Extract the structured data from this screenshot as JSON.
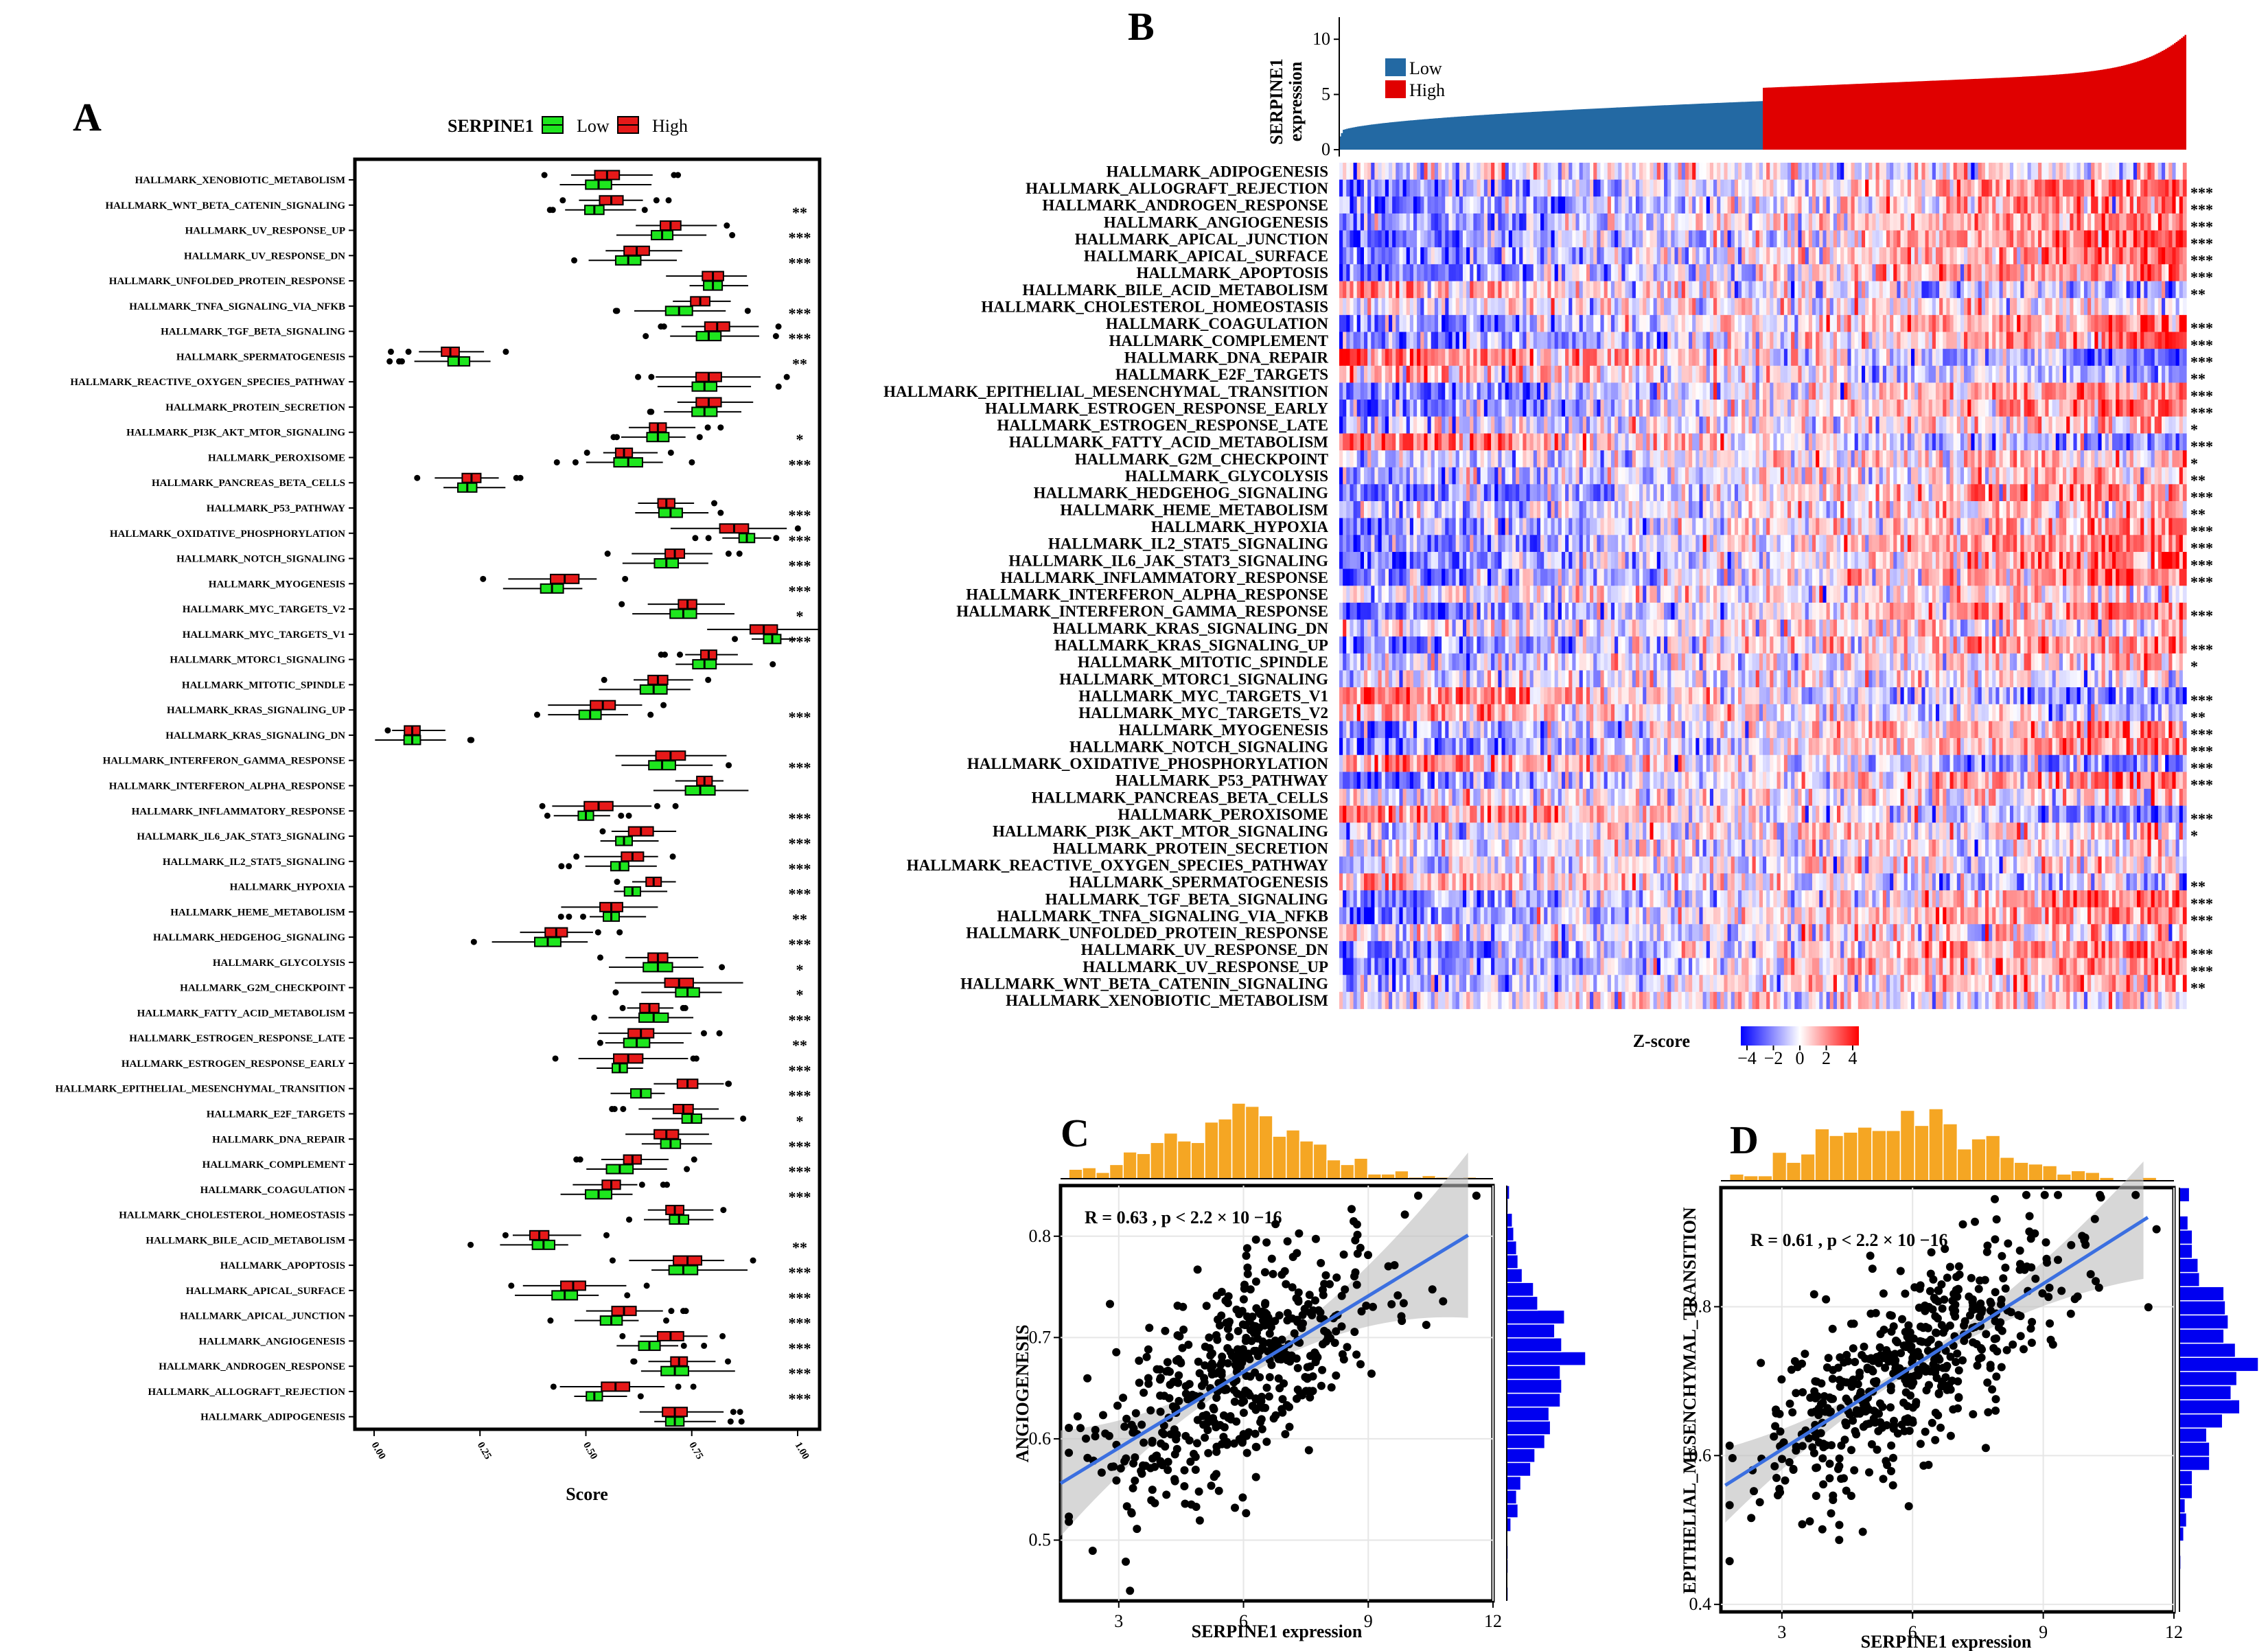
{
  "panels": {
    "A": "A",
    "B": "B",
    "C": "C",
    "D": "D"
  },
  "colors": {
    "low_box": "#1ee61e",
    "high_box": "#e61919",
    "low_bar": "#2369a3",
    "high_bar": "#e00000",
    "hist_top": "#f5a623",
    "hist_side": "#0000f0",
    "fit_line": "#3b6fe0",
    "heat_low": "#0000ff",
    "heat_mid": "#ffffff",
    "heat_high": "#ff0000"
  },
  "panel_a": {
    "legend_title": "SERPINE1",
    "legend_low": "Low",
    "legend_high": "High",
    "xlabel": "Score",
    "xticks": [
      "0.00",
      "0.25",
      "0.50",
      "0.75",
      "1.00"
    ]
  },
  "panel_b": {
    "ylabel_top": "SERPINE1",
    "ylabel_bottom": "expression",
    "yticks": [
      "0",
      "5",
      "10"
    ],
    "legend_low": "Low",
    "legend_high": "High",
    "zscore_title": "Z-score",
    "zscore_ticks": [
      "−4",
      "−2",
      "0",
      "2",
      "4"
    ]
  },
  "panel_c": {
    "annotation": "R = 0.63 , p < 2.2 × 10 −16",
    "xlabel": "SERPINE1 expression",
    "ylabel": "ANGIOGENESIS",
    "xticks": [
      "3",
      "6",
      "9",
      "12"
    ],
    "yticks": [
      "0.5",
      "0.6",
      "0.7",
      "0.8"
    ]
  },
  "panel_d": {
    "annotation": "R = 0.61 , p < 2.2 × 10 −16",
    "xlabel": "SERPINE1 expression",
    "ylabel": "EPITHELIAL_MESENCHYMAL_TRANSITION",
    "xticks": [
      "3",
      "6",
      "9",
      "12"
    ],
    "yticks": [
      "0.4",
      "0.6",
      "0.8"
    ]
  },
  "chart_data": [
    {
      "type": "box",
      "panel": "A",
      "xlabel": "Score",
      "xlim": [
        0,
        1
      ],
      "categories": [
        "HALLMARK_XENOBIOTIC_METABOLISM",
        "HALLMARK_WNT_BETA_CATENIN_SIGNALING",
        "HALLMARK_UV_RESPONSE_UP",
        "HALLMARK_UV_RESPONSE_DN",
        "HALLMARK_UNFOLDED_PROTEIN_RESPONSE",
        "HALLMARK_TNFA_SIGNALING_VIA_NFKB",
        "HALLMARK_TGF_BETA_SIGNALING",
        "HALLMARK_SPERMATOGENESIS",
        "HALLMARK_REACTIVE_OXYGEN_SPECIES_PATHWAY",
        "HALLMARK_PROTEIN_SECRETION",
        "HALLMARK_PI3K_AKT_MTOR_SIGNALING",
        "HALLMARK_PEROXISOME",
        "HALLMARK_PANCREAS_BETA_CELLS",
        "HALLMARK_P53_PATHWAY",
        "HALLMARK_OXIDATIVE_PHOSPHORYLATION",
        "HALLMARK_NOTCH_SIGNALING",
        "HALLMARK_MYOGENESIS",
        "HALLMARK_MYC_TARGETS_V2",
        "HALLMARK_MYC_TARGETS_V1",
        "HALLMARK_MTORC1_SIGNALING",
        "HALLMARK_MITOTIC_SPINDLE",
        "HALLMARK_KRAS_SIGNALING_UP",
        "HALLMARK_KRAS_SIGNALING_DN",
        "HALLMARK_INTERFERON_GAMMA_RESPONSE",
        "HALLMARK_INTERFERON_ALPHA_RESPONSE",
        "HALLMARK_INFLAMMATORY_RESPONSE",
        "HALLMARK_IL6_JAK_STAT3_SIGNALING",
        "HALLMARK_IL2_STAT5_SIGNALING",
        "HALLMARK_HYPOXIA",
        "HALLMARK_HEME_METABOLISM",
        "HALLMARK_HEDGEHOG_SIGNALING",
        "HALLMARK_GLYCOLYSIS",
        "HALLMARK_G2M_CHECKPOINT",
        "HALLMARK_FATTY_ACID_METABOLISM",
        "HALLMARK_ESTROGEN_RESPONSE_LATE",
        "HALLMARK_ESTROGEN_RESPONSE_EARLY",
        "HALLMARK_EPITHELIAL_MESENCHYMAL_TRANSITION",
        "HALLMARK_E2F_TARGETS",
        "HALLMARK_DNA_REPAIR",
        "HALLMARK_COMPLEMENT",
        "HALLMARK_COAGULATION",
        "HALLMARK_CHOLESTEROL_HOMEOSTASIS",
        "HALLMARK_BILE_ACID_METABOLISM",
        "HALLMARK_APOPTOSIS",
        "HALLMARK_APICAL_SURFACE",
        "HALLMARK_APICAL_JUNCTION",
        "HALLMARK_ANGIOGENESIS",
        "HALLMARK_ANDROGEN_RESPONSE",
        "HALLMARK_ALLOGRAFT_REJECTION",
        "HALLMARK_ADIPOGENESIS"
      ],
      "significance": [
        "",
        "**",
        "***",
        "***",
        "",
        "***",
        "***",
        "**",
        "",
        "",
        "*",
        "***",
        "",
        "***",
        "***",
        "***",
        "***",
        "*",
        "***",
        "",
        "",
        "***",
        "",
        "***",
        "",
        "***",
        "***",
        "***",
        "***",
        "**",
        "***",
        "*",
        "*",
        "***",
        "**",
        "***",
        "***",
        "*",
        "***",
        "***",
        "***",
        "",
        "**",
        "***",
        "***",
        "***",
        "***",
        "***",
        "***",
        ""
      ],
      "series": [
        {
          "name": "Low",
          "medians": [
            0.53,
            0.52,
            0.68,
            0.6,
            0.8,
            0.72,
            0.79,
            0.2,
            0.78,
            0.78,
            0.67,
            0.6,
            0.22,
            0.7,
            0.88,
            0.69,
            0.42,
            0.73,
            0.94,
            0.78,
            0.66,
            0.51,
            0.09,
            0.68,
            0.77,
            0.5,
            0.59,
            0.58,
            0.61,
            0.56,
            0.41,
            0.67,
            0.74,
            0.66,
            0.62,
            0.58,
            0.63,
            0.75,
            0.7,
            0.58,
            0.53,
            0.72,
            0.4,
            0.73,
            0.45,
            0.56,
            0.65,
            0.71,
            0.52,
            0.71
          ]
        },
        {
          "name": "High",
          "medians": [
            0.55,
            0.56,
            0.7,
            0.62,
            0.8,
            0.77,
            0.81,
            0.18,
            0.79,
            0.79,
            0.67,
            0.59,
            0.23,
            0.69,
            0.85,
            0.71,
            0.45,
            0.74,
            0.92,
            0.79,
            0.67,
            0.54,
            0.09,
            0.7,
            0.78,
            0.53,
            0.63,
            0.61,
            0.66,
            0.56,
            0.43,
            0.67,
            0.72,
            0.65,
            0.63,
            0.6,
            0.74,
            0.73,
            0.69,
            0.61,
            0.56,
            0.71,
            0.39,
            0.74,
            0.47,
            0.59,
            0.7,
            0.72,
            0.57,
            0.71
          ]
        }
      ]
    },
    {
      "type": "heatmap",
      "panel": "B",
      "rows": [
        "HALLMARK_ADIPOGENESIS",
        "HALLMARK_ALLOGRAFT_REJECTION",
        "HALLMARK_ANDROGEN_RESPONSE",
        "HALLMARK_ANGIOGENESIS",
        "HALLMARK_APICAL_JUNCTION",
        "HALLMARK_APICAL_SURFACE",
        "HALLMARK_APOPTOSIS",
        "HALLMARK_BILE_ACID_METABOLISM",
        "HALLMARK_CHOLESTEROL_HOMEOSTASIS",
        "HALLMARK_COAGULATION",
        "HALLMARK_COMPLEMENT",
        "HALLMARK_DNA_REPAIR",
        "HALLMARK_E2F_TARGETS",
        "HALLMARK_EPITHELIAL_MESENCHYMAL_TRANSITION",
        "HALLMARK_ESTROGEN_RESPONSE_EARLY",
        "HALLMARK_ESTROGEN_RESPONSE_LATE",
        "HALLMARK_FATTY_ACID_METABOLISM",
        "HALLMARK_G2M_CHECKPOINT",
        "HALLMARK_GLYCOLYSIS",
        "HALLMARK_HEDGEHOG_SIGNALING",
        "HALLMARK_HEME_METABOLISM",
        "HALLMARK_HYPOXIA",
        "HALLMARK_IL2_STAT5_SIGNALING",
        "HALLMARK_IL6_JAK_STAT3_SIGNALING",
        "HALLMARK_INFLAMMATORY_RESPONSE",
        "HALLMARK_INTERFERON_ALPHA_RESPONSE",
        "HALLMARK_INTERFERON_GAMMA_RESPONSE",
        "HALLMARK_KRAS_SIGNALING_DN",
        "HALLMARK_KRAS_SIGNALING_UP",
        "HALLMARK_MITOTIC_SPINDLE",
        "HALLMARK_MTORC1_SIGNALING",
        "HALLMARK_MYC_TARGETS_V1",
        "HALLMARK_MYC_TARGETS_V2",
        "HALLMARK_MYOGENESIS",
        "HALLMARK_NOTCH_SIGNALING",
        "HALLMARK_OXIDATIVE_PHOSPHORYLATION",
        "HALLMARK_P53_PATHWAY",
        "HALLMARK_PANCREAS_BETA_CELLS",
        "HALLMARK_PEROXISOME",
        "HALLMARK_PI3K_AKT_MTOR_SIGNALING",
        "HALLMARK_PROTEIN_SECRETION",
        "HALLMARK_REACTIVE_OXYGEN_SPECIES_PATHWAY",
        "HALLMARK_SPERMATOGENESIS",
        "HALLMARK_TGF_BETA_SIGNALING",
        "HALLMARK_TNFA_SIGNALING_VIA_NFKB",
        "HALLMARK_UNFOLDED_PROTEIN_RESPONSE",
        "HALLMARK_UV_RESPONSE_DN",
        "HALLMARK_UV_RESPONSE_UP",
        "HALLMARK_WNT_BETA_CATENIN_SIGNALING",
        "HALLMARK_XENOBIOTIC_METABOLISM"
      ],
      "significance": [
        "",
        "***",
        "***",
        "***",
        "***",
        "***",
        "***",
        "**",
        "",
        "***",
        "***",
        "***",
        "**",
        "***",
        "***",
        "*",
        "***",
        "*",
        "**",
        "***",
        "**",
        "***",
        "***",
        "***",
        "***",
        "",
        "***",
        "",
        "***",
        "*",
        "",
        "***",
        "**",
        "***",
        "***",
        "***",
        "***",
        "",
        "***",
        "*",
        "",
        "",
        "**",
        "***",
        "***",
        "",
        "***",
        "***",
        "**",
        ""
      ],
      "top_annotation": {
        "ylabel": "SERPINE1 expression",
        "ylim": [
          0,
          12
        ],
        "groups": [
          "Low",
          "High"
        ]
      },
      "colorbar": {
        "title": "Z-score",
        "range": [
          -4,
          4
        ]
      }
    },
    {
      "type": "scatter",
      "panel": "C",
      "xlabel": "SERPINE1 expression",
      "ylabel": "ANGIOGENESIS",
      "xlim": [
        1.6,
        12
      ],
      "ylim": [
        0.44,
        0.85
      ],
      "annotation": "R = 0.63 , p < 2.2 × 10 −16",
      "fit_line": {
        "x": [
          1.6,
          11.4
        ],
        "y": [
          0.556,
          0.801
        ]
      }
    },
    {
      "type": "scatter",
      "panel": "D",
      "xlabel": "SERPINE1 expression",
      "ylabel": "EPITHELIAL_MESENCHYMAL_TRANSITION",
      "xlim": [
        1.6,
        12
      ],
      "ylim": [
        0.39,
        0.96
      ],
      "annotation": "R = 0.61 , p < 2.2 × 10 −16",
      "fit_line": {
        "x": [
          1.7,
          11.4
        ],
        "y": [
          0.56,
          0.92
        ]
      }
    }
  ]
}
